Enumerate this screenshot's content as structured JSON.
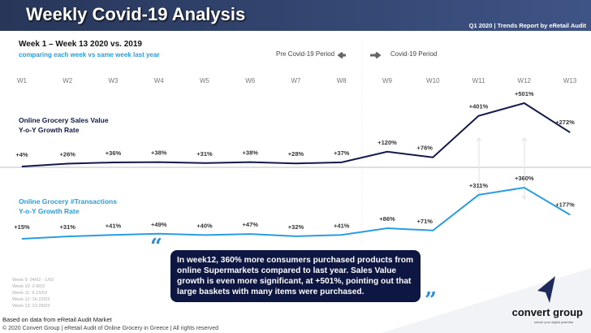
{
  "header": {
    "title": "Weekly Covid-19 Analysis",
    "subtitle": "Q1 2020 | Trends Report by eRetail Audit"
  },
  "intro": {
    "title": "Week 1 – Week 13 2020 vs. 2019",
    "subtitle": "comparing each week vs same week last year"
  },
  "periods": {
    "pre": "Pre Covid-19 Period",
    "post": "Covid-19 Period"
  },
  "chart_data": {
    "type": "line",
    "categories": [
      "W1",
      "W2",
      "W3",
      "W4",
      "W5",
      "W6",
      "W7",
      "W8",
      "W9",
      "W10",
      "W11",
      "W12",
      "W13"
    ],
    "series": [
      {
        "name": "Online Grocery Sales Value Y-o-Y Growth Rate",
        "line1": "Online Grocery Sales Value",
        "line2": "Y-o-Y Growth Rate",
        "color": "#111a4a",
        "values": [
          4,
          26,
          36,
          38,
          31,
          38,
          28,
          37,
          120,
          76,
          401,
          501,
          272
        ],
        "labels": [
          "+4%",
          "+26%",
          "+36%",
          "+38%",
          "+31%",
          "+38%",
          "+28%",
          "+37%",
          "+120%",
          "+76%",
          "+401%",
          "+501%",
          "+272%"
        ]
      },
      {
        "name": "Online Grocery #Transactions Y-o-Y Growth Rate",
        "line1": "Online Grocery #Transactions",
        "line2": "Y-o-Y Growth Rate",
        "color": "#2a9de0",
        "values": [
          15,
          31,
          41,
          49,
          40,
          47,
          32,
          41,
          86,
          71,
          311,
          360,
          177
        ],
        "labels": [
          "+15%",
          "+31%",
          "+41%",
          "+49%",
          "+40%",
          "+47%",
          "+32%",
          "+41%",
          "+86%",
          "+71%",
          "+311%",
          "+360%",
          "+177%"
        ]
      }
    ],
    "grid": false,
    "legend": "left"
  },
  "note": {
    "text": "In week12, 360% more consumers purchased products from online Supermarkets compared to last year. Sales Value growth is even more significant, at +501%, pointing out that large baskets with many items were purchased.",
    "open_quote": "“",
    "close_quote": "”"
  },
  "week_dates": [
    "Week 9: 24/02 - 1/03",
    "Week 10: 2-8/03",
    "Week 11: 9-15/03",
    "Week 12: 16-22/03",
    "Week 13: 23-29/03"
  ],
  "footer": {
    "source": "Based on data from eRetail Audit Market",
    "copyright": "© 2020 Convert Group | eRetail Audit of Online Grocery in Greece | All rights reserved"
  },
  "logo": {
    "name": "convert group",
    "tagline": "unlock your digital potential"
  }
}
